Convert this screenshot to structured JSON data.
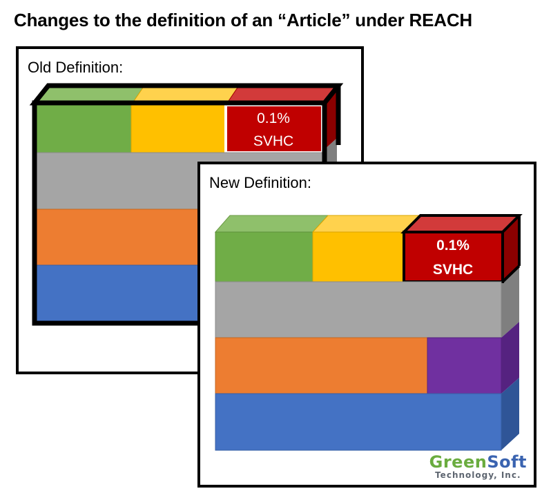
{
  "title": "Changes to the definition of an “Article” under REACH",
  "old_panel": {
    "label": "Old Definition:",
    "svhc_line1": "0.1%",
    "svhc_line2": "SVHC"
  },
  "new_panel": {
    "label": "New Definition:",
    "svhc_line1": "0.1%",
    "svhc_line2": "SVHC"
  },
  "logo": {
    "part1": "Green",
    "part2": "Soft",
    "subtitle": "Technology, Inc."
  },
  "colors": {
    "green": "#70ad47",
    "yellow": "#ffc000",
    "red": "#c00000",
    "gray": "#a5a5a5",
    "orange": "#ed7d31",
    "blue": "#4472c4",
    "purple": "#7030a0"
  }
}
